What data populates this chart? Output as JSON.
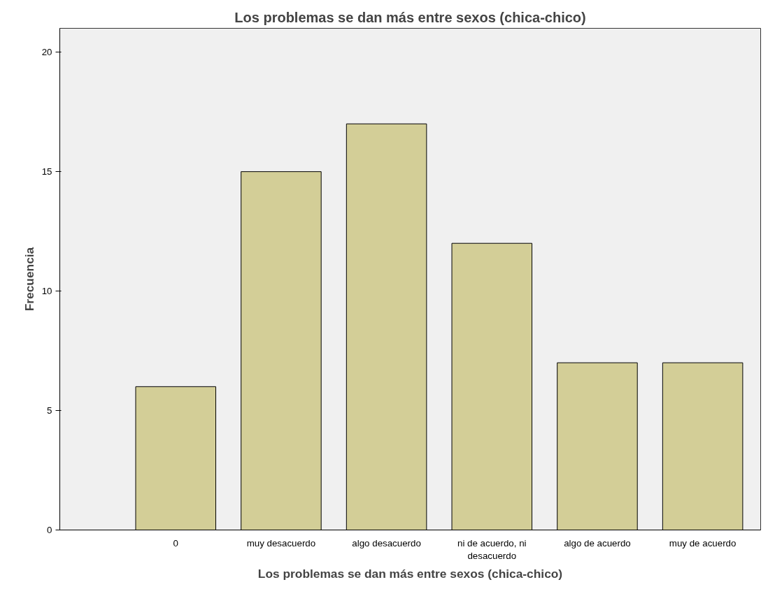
{
  "chart_data": {
    "type": "bar",
    "title": "Los problemas se dan más entre sexos (chica-chico)",
    "xlabel": "Los problemas se dan más entre sexos (chica-chico)",
    "ylabel": "Frecuencia",
    "categories": [
      "0",
      "muy desacuerdo",
      "algo desacuerdo",
      "ni de acuerdo, ni desacuerdo",
      "algo de acuerdo",
      "muy de acuerdo"
    ],
    "values": [
      6,
      15,
      17,
      12,
      7,
      7
    ],
    "color": "#d3ce97",
    "ylim": [
      0,
      21
    ],
    "yticks": [
      0,
      5,
      10,
      15,
      20
    ],
    "grid": false
  }
}
